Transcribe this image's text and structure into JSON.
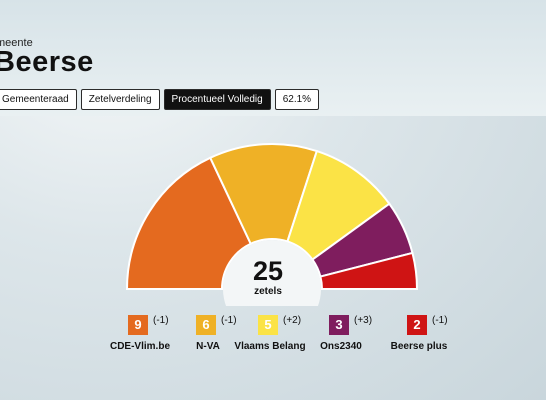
{
  "header": {
    "subtitle": "meente",
    "title": "Beerse"
  },
  "tabs": [
    {
      "label": "Gemeenteraad"
    },
    {
      "label": "Zetelverdeling"
    },
    {
      "label": "Procentueel Volledig",
      "active": true
    },
    {
      "label": "62.1%"
    }
  ],
  "chart_data": {
    "type": "pie",
    "style": "semicircle-seat-chart",
    "total_label": "25",
    "total_caption": "zetels",
    "parties": [
      {
        "name": "CDE-Vlim.be",
        "seats": "9",
        "change": "(-1)",
        "color": "#e46a1f"
      },
      {
        "name": "N-VA",
        "seats": "6",
        "change": "(-1)",
        "color": "#efb126"
      },
      {
        "name": "Vlaams Belang",
        "seats": "5",
        "change": "(+2)",
        "color": "#fbe346"
      },
      {
        "name": "Ons2340",
        "seats": "3",
        "change": "(+3)",
        "color": "#7f1d5e"
      },
      {
        "name": "Beerse plus",
        "seats": "2",
        "change": "(-1)",
        "color": "#cf1414"
      }
    ]
  }
}
